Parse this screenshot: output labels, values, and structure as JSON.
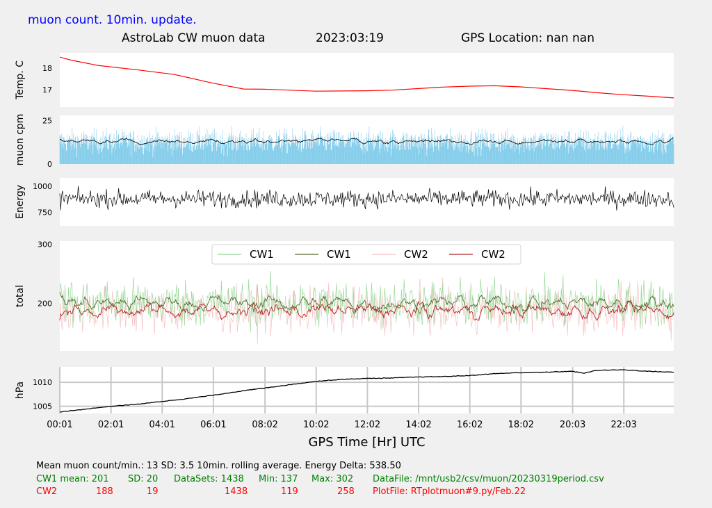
{
  "corner_label": "muon count.  10min. update.",
  "header": {
    "title": "AstroLab CW muon data",
    "date": "2023:03:19",
    "location": "GPS Location: nan   nan"
  },
  "colors": {
    "background": "#f0f0f0",
    "panel": "#ffffff",
    "temperature": "#ff0000",
    "muon_bars": "#87ceeb",
    "muon_avg": "#000000",
    "energy": "#000000",
    "cw1_raw": "#98d898",
    "cw1_avg": "#556b2f",
    "cw2_raw": "#f4c2c2",
    "cw2_avg": "#b22222",
    "pressure": "#000000"
  },
  "chart_data": [
    {
      "type": "line",
      "ylabel": "Temp. C",
      "yticks": [
        "18",
        "17"
      ],
      "ylim": [
        16.2,
        18.7
      ],
      "x_range_hours": [
        0.0167,
        24
      ],
      "series": [
        {
          "points": [
            [
              0.0167,
              18.5
            ],
            [
              0.5,
              18.35
            ],
            [
              1.5,
              18.12
            ],
            [
              3,
              17.92
            ],
            [
              4.5,
              17.7
            ],
            [
              6,
              17.3
            ],
            [
              7.2,
              17.03
            ],
            [
              8,
              17.02
            ],
            [
              9,
              16.98
            ],
            [
              10,
              16.93
            ],
            [
              11,
              16.94
            ],
            [
              12,
              16.95
            ],
            [
              13,
              16.98
            ],
            [
              14,
              17.05
            ],
            [
              15,
              17.12
            ],
            [
              16,
              17.16
            ],
            [
              17,
              17.18
            ],
            [
              18,
              17.13
            ],
            [
              19,
              17.05
            ],
            [
              20,
              16.97
            ],
            [
              21,
              16.86
            ],
            [
              22,
              16.77
            ],
            [
              23,
              16.7
            ],
            [
              24,
              16.62
            ]
          ]
        }
      ]
    },
    {
      "type": "bar",
      "ylabel": "muon cpm",
      "yticks": [
        "25",
        "0"
      ],
      "ylim": [
        0,
        28
      ],
      "mean": 13,
      "sd": 3.5,
      "note": "10min. rolling average"
    },
    {
      "type": "line",
      "ylabel": "Energy",
      "yticks": [
        "1000",
        "750"
      ],
      "ylim": [
        620,
        1080
      ],
      "approx_mean": 880,
      "approx_spread": 120
    },
    {
      "type": "line",
      "ylabel": "total",
      "yticks": [
        "300",
        "200"
      ],
      "ylim": [
        120,
        305
      ],
      "legend": [
        "CW1",
        "CW1",
        "CW2",
        "CW2"
      ],
      "legend_position": "top-center",
      "series": [
        {
          "mean": 201,
          "sd": 20,
          "min": 137,
          "max": 302
        },
        {
          "mean": 201
        },
        {
          "mean": 188,
          "sd": 19,
          "min": 119,
          "max": 258
        },
        {
          "mean": 188
        }
      ]
    },
    {
      "type": "line",
      "ylabel": "hPa",
      "yticks": [
        "1010",
        "1005"
      ],
      "ylim": [
        1003.5,
        1013.2
      ],
      "grid": true,
      "xlabel": "GPS Time  [Hr] UTC",
      "xticks": [
        "00:01",
        "02:01",
        "04:01",
        "06:01",
        "08:02",
        "10:02",
        "12:02",
        "14:02",
        "16:02",
        "18:02",
        "20:03",
        "22:03"
      ],
      "xtick_hours": [
        0.0167,
        2.0167,
        4.0167,
        6.0167,
        8.0333,
        10.0333,
        12.0333,
        14.0333,
        16.0333,
        18.0333,
        20.05,
        22.05
      ],
      "series": [
        {
          "points": [
            [
              0.0167,
              1003.8
            ],
            [
              1,
              1004.4
            ],
            [
              2,
              1005.0
            ],
            [
              3,
              1005.4
            ],
            [
              4,
              1006.0
            ],
            [
              5,
              1006.6
            ],
            [
              6,
              1007.3
            ],
            [
              7,
              1008.1
            ],
            [
              8,
              1008.8
            ],
            [
              9,
              1009.5
            ],
            [
              10,
              1010.2
            ],
            [
              11,
              1010.6
            ],
            [
              12,
              1010.8
            ],
            [
              13,
              1010.9
            ],
            [
              14,
              1011.1
            ],
            [
              15,
              1011.2
            ],
            [
              16,
              1011.4
            ],
            [
              17,
              1011.8
            ],
            [
              18,
              1012.0
            ],
            [
              19,
              1012.1
            ],
            [
              20,
              1012.3
            ],
            [
              20.5,
              1011.9
            ],
            [
              21,
              1012.5
            ],
            [
              22,
              1012.6
            ],
            [
              23,
              1012.3
            ],
            [
              24,
              1012.1
            ]
          ]
        }
      ]
    }
  ],
  "stats": {
    "line1": "Mean muon count/min.: 13  SD: 3.5   10min. rolling average.    Energy Delta:  538.50",
    "cw1": {
      "label": "CW1 mean: 201",
      "sd": "SD: 20",
      "datasets": "DataSets: 1438",
      "min": "Min: 137",
      "max": "Max: 302",
      "file": "DataFile: /mnt/usb2/csv/muon/20230319period.csv"
    },
    "cw2": {
      "label": "CW2",
      "mean": "188",
      "sd": "19",
      "datasets": "1438",
      "min": "119",
      "max": "258",
      "file": "PlotFile: RTplotmuon#9.py/Feb.22"
    }
  }
}
